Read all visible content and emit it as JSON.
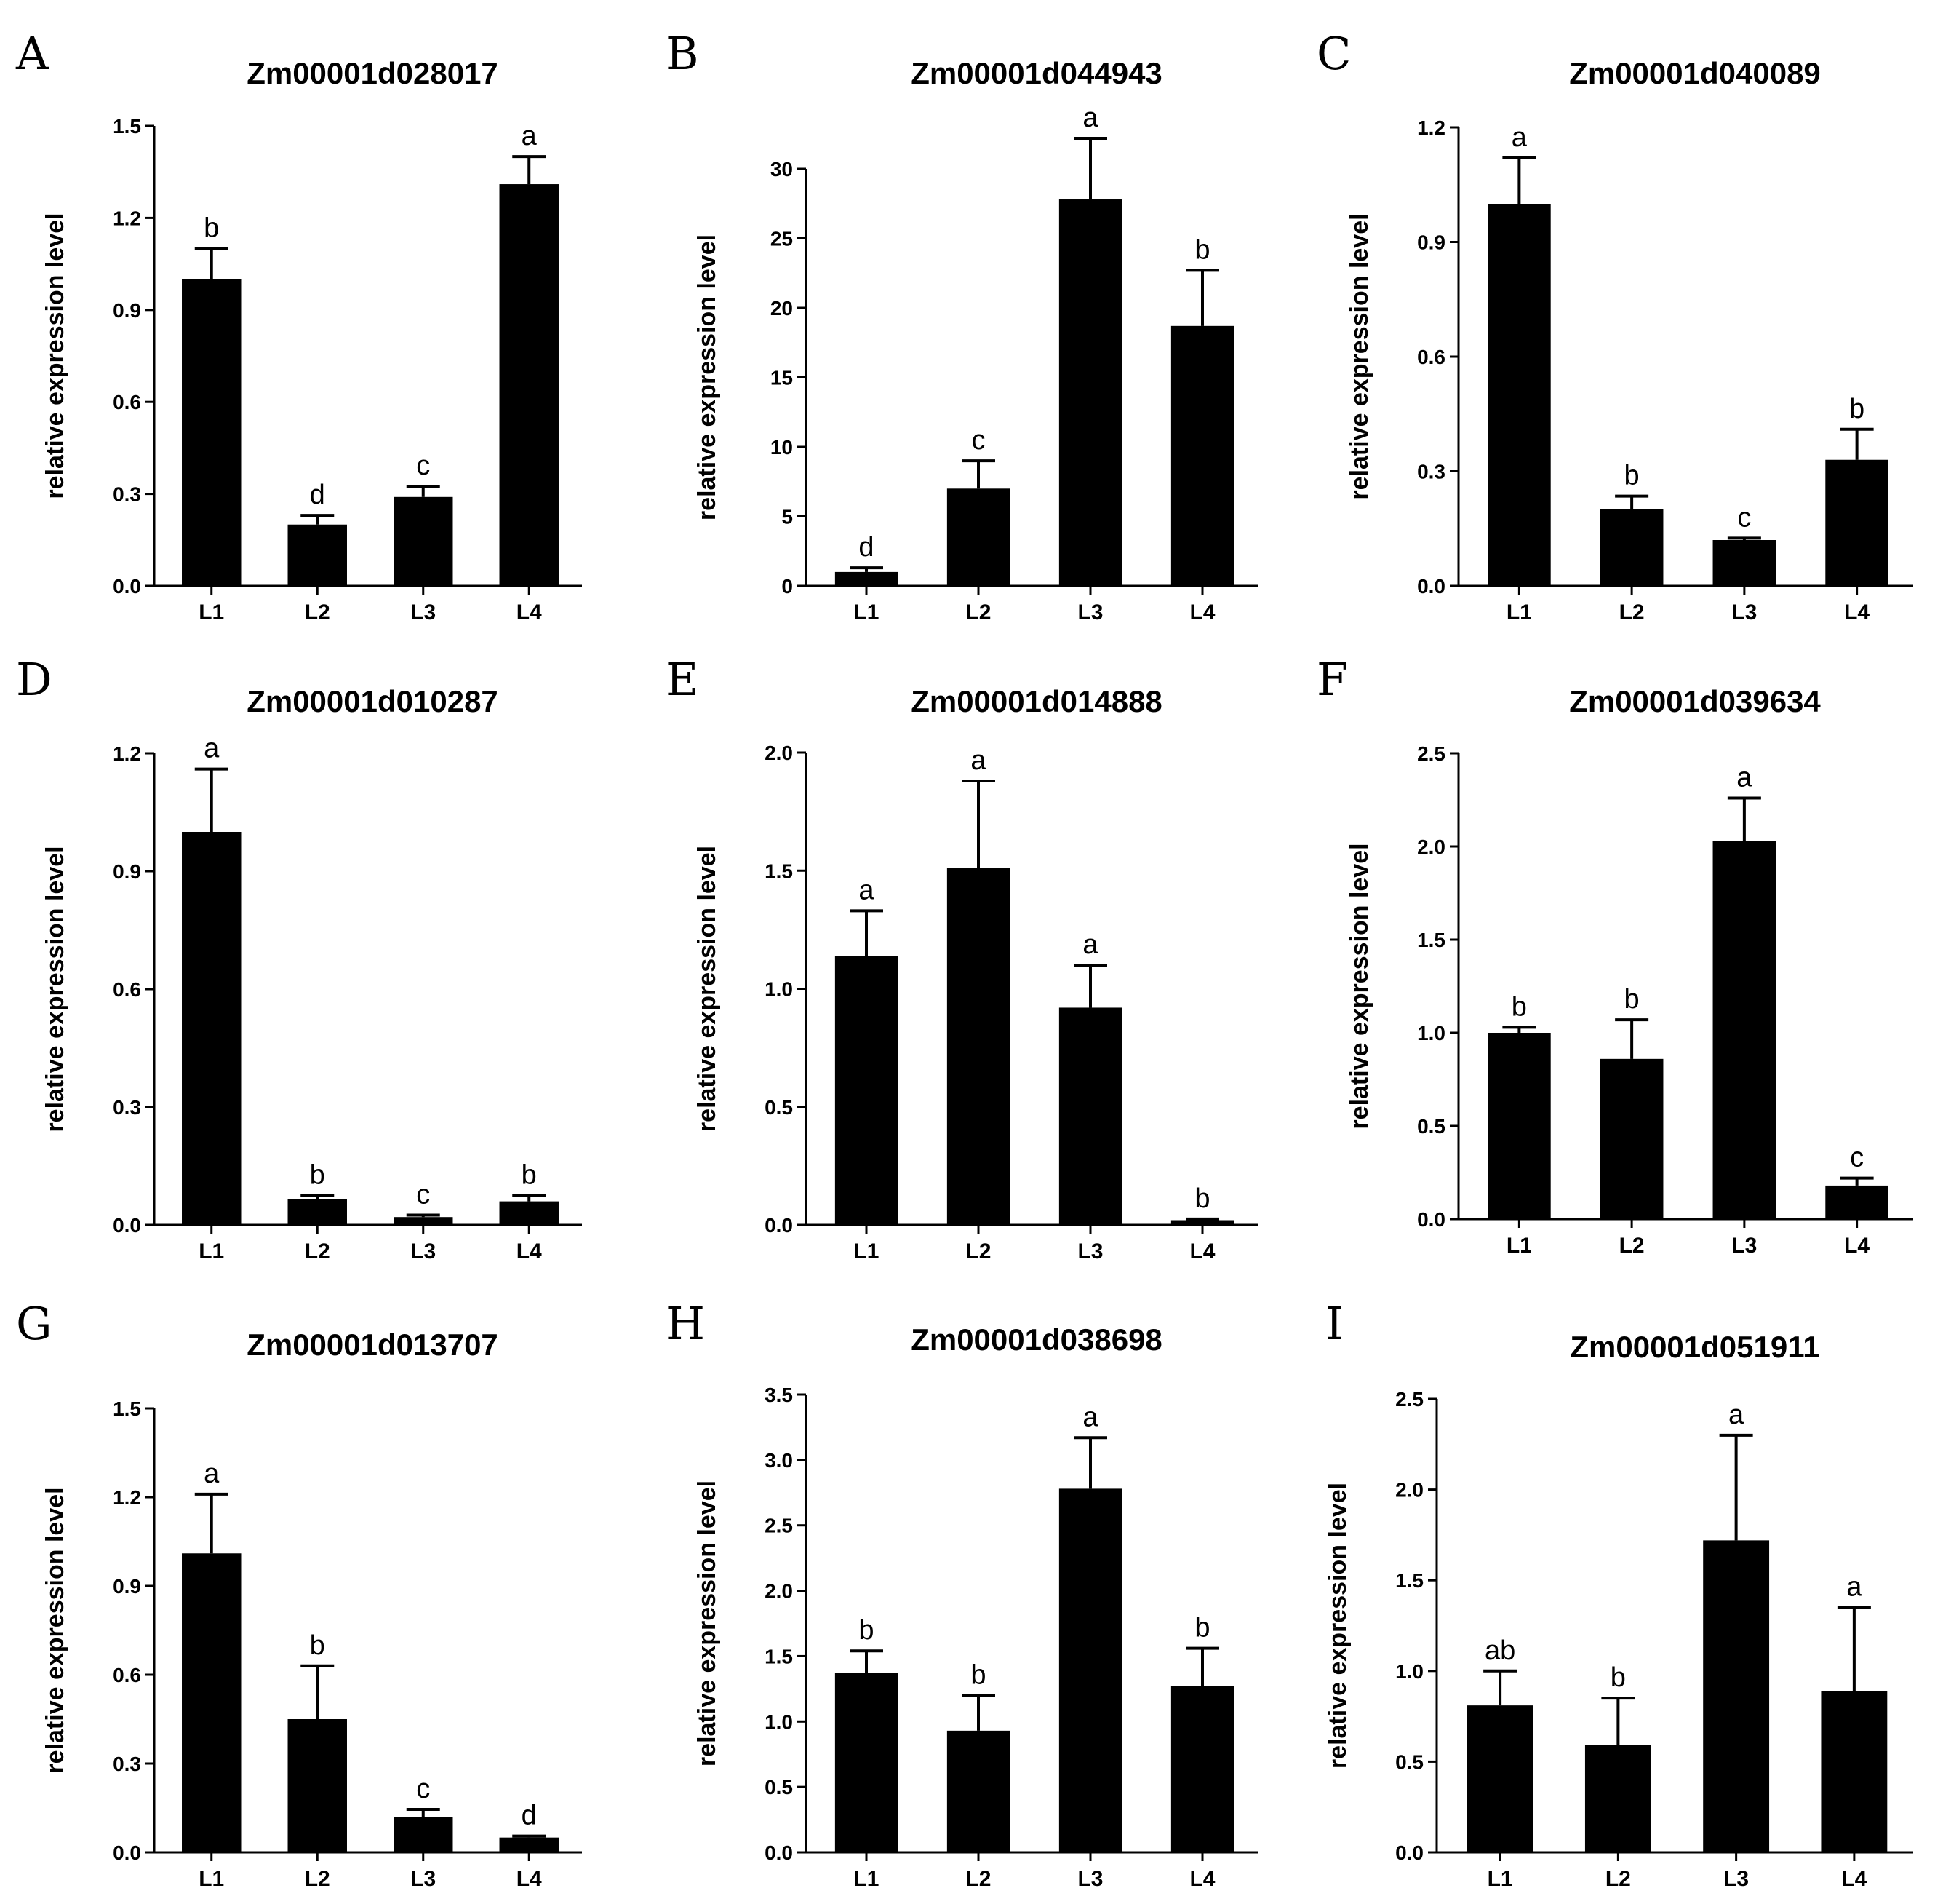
{
  "figure": {
    "ylabel": "relative expression level",
    "bar_color": "#000000"
  },
  "chart_data": [
    {
      "panel": "A",
      "type": "bar",
      "title": "Zm00001d028017",
      "xlabel": "",
      "ylabel": "relative expression level",
      "categories": [
        "L1",
        "L2",
        "L3",
        "L4"
      ],
      "values": [
        1.0,
        0.2,
        0.29,
        1.31
      ],
      "errors": [
        0.1,
        0.03,
        0.035,
        0.09
      ],
      "letters": [
        "b",
        "d",
        "c",
        "a"
      ],
      "ylim": [
        0,
        1.5
      ],
      "yticks": [
        0.0,
        0.3,
        0.6,
        0.9,
        1.2,
        1.5
      ],
      "ytick_labels": [
        "0.0",
        "0.3",
        "0.6",
        "0.9",
        "1.2",
        "1.5"
      ]
    },
    {
      "panel": "B",
      "type": "bar",
      "title": "Zm00001d044943",
      "xlabel": "",
      "ylabel": "relative expression level",
      "categories": [
        "L1",
        "L2",
        "L3",
        "L4"
      ],
      "values": [
        1.0,
        7.0,
        27.8,
        18.7
      ],
      "errors": [
        0.3,
        2.0,
        4.4,
        4.0
      ],
      "letters": [
        "d",
        "c",
        "a",
        "b"
      ],
      "ylim": [
        0,
        33
      ],
      "yticks": [
        0,
        5,
        10,
        15,
        20,
        25,
        30
      ],
      "ytick_labels": [
        "0",
        "5",
        "10",
        "15",
        "20",
        "25",
        "30"
      ]
    },
    {
      "panel": "C",
      "type": "bar",
      "title": "Zm00001d040089",
      "xlabel": "",
      "ylabel": "relative expression level",
      "categories": [
        "L1",
        "L2",
        "L3",
        "L4"
      ],
      "values": [
        1.0,
        0.2,
        0.12,
        0.33
      ],
      "errors": [
        0.12,
        0.035,
        0.005,
        0.08
      ],
      "letters": [
        "a",
        "b",
        "c",
        "b"
      ],
      "ylim": [
        0,
        1.2
      ],
      "yticks": [
        0.0,
        0.3,
        0.6,
        0.9,
        1.2
      ],
      "ytick_labels": [
        "0.0",
        "0.3",
        "0.6",
        "0.9",
        "1.2"
      ]
    },
    {
      "panel": "D",
      "type": "bar",
      "title": "Zm00001d010287",
      "xlabel": "",
      "ylabel": "relative expression level",
      "categories": [
        "L1",
        "L2",
        "L3",
        "L4"
      ],
      "values": [
        1.0,
        0.065,
        0.02,
        0.06
      ],
      "errors": [
        0.16,
        0.01,
        0.005,
        0.015
      ],
      "letters": [
        "a",
        "b",
        "c",
        "b"
      ],
      "ylim": [
        0,
        1.2
      ],
      "yticks": [
        0.0,
        0.3,
        0.6,
        0.9,
        1.2
      ],
      "ytick_labels": [
        "0.0",
        "0.3",
        "0.6",
        "0.9",
        "1.2"
      ]
    },
    {
      "panel": "E",
      "type": "bar",
      "title": "Zm00001d014888",
      "xlabel": "",
      "ylabel": "relative expression level",
      "categories": [
        "L1",
        "L2",
        "L3",
        "L4"
      ],
      "values": [
        1.14,
        1.51,
        0.92,
        0.02
      ],
      "errors": [
        0.19,
        0.37,
        0.18,
        0.005
      ],
      "letters": [
        "a",
        "a",
        "a",
        "b"
      ],
      "ylim": [
        0,
        2.0
      ],
      "yticks": [
        0.0,
        0.5,
        1.0,
        1.5,
        2.0
      ],
      "ytick_labels": [
        "0.0",
        "0.5",
        "1.0",
        "1.5",
        "2.0"
      ]
    },
    {
      "panel": "F",
      "type": "bar",
      "title": "Zm00001d039634",
      "xlabel": "",
      "ylabel": "relative expression level",
      "categories": [
        "L1",
        "L2",
        "L3",
        "L4"
      ],
      "values": [
        1.0,
        0.86,
        2.03,
        0.18
      ],
      "errors": [
        0.03,
        0.21,
        0.23,
        0.04
      ],
      "letters": [
        "b",
        "b",
        "a",
        "c"
      ],
      "ylim": [
        0,
        2.5
      ],
      "yticks": [
        0.0,
        0.5,
        1.0,
        1.5,
        2.0,
        2.5
      ],
      "ytick_labels": [
        "0.0",
        "0.5",
        "1.0",
        "1.5",
        "2.0",
        "2.5"
      ]
    },
    {
      "panel": "G",
      "type": "bar",
      "title": "Zm00001d013707",
      "xlabel": "",
      "ylabel": "relative expression level",
      "categories": [
        "L1",
        "L2",
        "L3",
        "L4"
      ],
      "values": [
        1.01,
        0.45,
        0.12,
        0.05
      ],
      "errors": [
        0.2,
        0.18,
        0.025,
        0.005
      ],
      "letters": [
        "a",
        "b",
        "c",
        "d"
      ],
      "ylim": [
        0,
        1.5
      ],
      "yticks": [
        0.0,
        0.3,
        0.6,
        0.9,
        1.2,
        1.5
      ],
      "ytick_labels": [
        "0.0",
        "0.3",
        "0.6",
        "0.9",
        "1.2",
        "1.5"
      ]
    },
    {
      "panel": "H",
      "type": "bar",
      "title": "Zm00001d038698",
      "xlabel": "",
      "ylabel": "relative expression level",
      "categories": [
        "L1",
        "L2",
        "L3",
        "L4"
      ],
      "values": [
        1.37,
        0.93,
        2.78,
        1.27
      ],
      "errors": [
        0.17,
        0.27,
        0.39,
        0.29
      ],
      "letters": [
        "b",
        "b",
        "a",
        "b"
      ],
      "ylim": [
        0,
        3.5
      ],
      "yticks": [
        0.0,
        0.5,
        1.0,
        1.5,
        2.0,
        2.5,
        3.0,
        3.5
      ],
      "ytick_labels": [
        "0.0",
        "0.5",
        "1.0",
        "1.5",
        "2.0",
        "2.5",
        "3.0",
        "3.5"
      ]
    },
    {
      "panel": "I",
      "type": "bar",
      "title": "Zm00001d051911",
      "xlabel": "",
      "ylabel": "relative expression level",
      "categories": [
        "L1",
        "L2",
        "L3",
        "L4"
      ],
      "values": [
        0.81,
        0.59,
        1.72,
        0.89
      ],
      "errors": [
        0.19,
        0.26,
        0.58,
        0.46
      ],
      "letters": [
        "ab",
        "b",
        "a",
        "a"
      ],
      "ylim": [
        0,
        2.5
      ],
      "yticks": [
        0.0,
        0.5,
        1.0,
        1.5,
        2.0,
        2.5
      ],
      "ytick_labels": [
        "0.0",
        "0.5",
        "1.0",
        "1.5",
        "2.0",
        "2.5"
      ]
    }
  ]
}
